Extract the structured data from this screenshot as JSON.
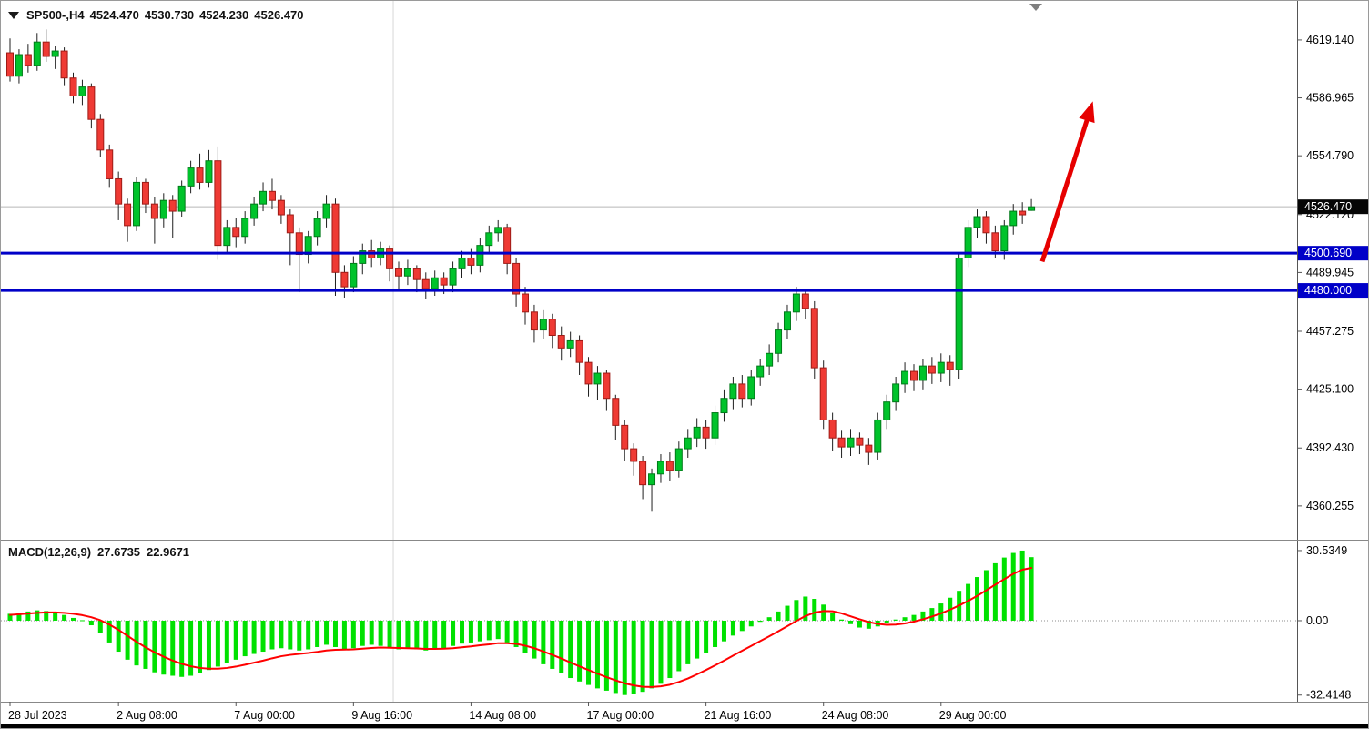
{
  "header": {
    "symbol_period": "SP500-,H4",
    "open": "4524.470",
    "high": "4530.730",
    "low": "4524.230",
    "close": "4526.470"
  },
  "macd_header": {
    "label": "MACD(12,26,9)",
    "main_value": "27.6735",
    "signal_value": "22.9671"
  },
  "price_axis": {
    "ticks": [
      {
        "label": "4619.140",
        "value": 4619.14
      },
      {
        "label": "4586.965",
        "value": 4586.965
      },
      {
        "label": "4554.790",
        "value": 4554.79
      },
      {
        "label": "4522.120",
        "value": 4522.12
      },
      {
        "label": "4489.945",
        "value": 4489.945
      },
      {
        "label": "4457.275",
        "value": 4457.275
      },
      {
        "label": "4425.100",
        "value": 4425.1
      },
      {
        "label": "4392.430",
        "value": 4392.43
      },
      {
        "label": "4360.255",
        "value": 4360.255
      }
    ],
    "markers": [
      {
        "name": "current-price-marker",
        "label": "4526.470",
        "value": 4526.47,
        "bg": "#050505",
        "fg": "#ffffff"
      },
      {
        "name": "hline-price-marker",
        "label": "4500.690",
        "value": 4500.69,
        "bg": "#0000C8",
        "fg": "#ffffff"
      },
      {
        "name": "hline-price-marker",
        "label": "4480.000",
        "value": 4480.0,
        "bg": "#0000C8",
        "fg": "#ffffff"
      }
    ]
  },
  "macd_axis": {
    "ticks": [
      {
        "label": "30.5349",
        "value": 30.5349
      },
      {
        "label": "0.00",
        "value": 0
      },
      {
        "label": "-32.4148",
        "value": -32.4148
      }
    ]
  },
  "time_axis": {
    "labels": [
      {
        "label": "28 Jul 2023",
        "bar": 0
      },
      {
        "label": "2 Aug 08:00",
        "bar": 12
      },
      {
        "label": "7 Aug 00:00",
        "bar": 25
      },
      {
        "label": "9 Aug 16:00",
        "bar": 38
      },
      {
        "label": "14 Aug 08:00",
        "bar": 51
      },
      {
        "label": "17 Aug 00:00",
        "bar": 64
      },
      {
        "label": "21 Aug 16:00",
        "bar": 77
      },
      {
        "label": "24 Aug 08:00",
        "bar": 90
      },
      {
        "label": "29 Aug 00:00",
        "bar": 103
      }
    ]
  },
  "colors": {
    "up": "#00C32B",
    "up_border": "#007A19",
    "down": "#EF3A34",
    "down_border": "#9E1B16",
    "wick": "#1f1f1f",
    "hline": "#0000C8",
    "macd_hist": "#00E100",
    "macd_signal": "#FF0000",
    "arrow": "#E60000",
    "axis_text": "#000000"
  },
  "chart_data": {
    "type": "candlestick",
    "title": "SP500-,H4",
    "symbol": "SP500-",
    "timeframe": "H4",
    "indicator": "MACD(12,26,9)",
    "current_price": 4526.47,
    "price_ylim": [
      4343.5,
      4636.8
    ],
    "macd_ylim": [
      -34.5,
      32.1
    ],
    "separators": [
      42.4
    ],
    "hlines": [
      {
        "value": 4500.69,
        "color": "#0000C8"
      },
      {
        "value": 4480.0,
        "color": "#0000C8"
      }
    ],
    "arrow": {
      "x1_bar": 114.2,
      "price1": 4496,
      "x2_bar": 119.8,
      "price2": 4585,
      "color": "#E60000"
    },
    "candles": [
      [
        4612,
        4620,
        4596,
        4599
      ],
      [
        4599,
        4614,
        4595,
        4611
      ],
      [
        4611,
        4617,
        4601,
        4605
      ],
      [
        4605,
        4623,
        4602,
        4618
      ],
      [
        4618,
        4625,
        4607,
        4610
      ],
      [
        4610,
        4616,
        4603,
        4613
      ],
      [
        4613,
        4615,
        4594,
        4598
      ],
      [
        4598,
        4601,
        4584,
        4588
      ],
      [
        4588,
        4597,
        4583,
        4593
      ],
      [
        4593,
        4595,
        4570,
        4575
      ],
      [
        4575,
        4578,
        4554,
        4558
      ],
      [
        4558,
        4561,
        4537,
        4542
      ],
      [
        4542,
        4546,
        4519,
        4528
      ],
      [
        4528,
        4531,
        4507,
        4516
      ],
      [
        4516,
        4543,
        4513,
        4540
      ],
      [
        4540,
        4542,
        4523,
        4528
      ],
      [
        4528,
        4532,
        4506,
        4520
      ],
      [
        4520,
        4534,
        4515,
        4530
      ],
      [
        4530,
        4533,
        4509,
        4524
      ],
      [
        4524,
        4541,
        4521,
        4538
      ],
      [
        4538,
        4552,
        4534,
        4548
      ],
      [
        4548,
        4556,
        4536,
        4540
      ],
      [
        4540,
        4558,
        4537,
        4552
      ],
      [
        4552,
        4560,
        4497,
        4505
      ],
      [
        4505,
        4519,
        4501,
        4515
      ],
      [
        4515,
        4520,
        4504,
        4510
      ],
      [
        4510,
        4524,
        4506,
        4520
      ],
      [
        4520,
        4532,
        4516,
        4528
      ],
      [
        4528,
        4540,
        4524,
        4535
      ],
      [
        4535,
        4542,
        4525,
        4530
      ],
      [
        4530,
        4533,
        4517,
        4522
      ],
      [
        4522,
        4525,
        4494,
        4512
      ],
      [
        4512,
        4515,
        4479,
        4500
      ],
      [
        4500,
        4513,
        4495,
        4510
      ],
      [
        4510,
        4524,
        4505,
        4520
      ],
      [
        4520,
        4533,
        4515,
        4528
      ],
      [
        4528,
        4531,
        4477,
        4490
      ],
      [
        4490,
        4494,
        4476,
        4482
      ],
      [
        4482,
        4499,
        4479,
        4495
      ],
      [
        4495,
        4506,
        4489,
        4502
      ],
      [
        4502,
        4508,
        4493,
        4498
      ],
      [
        4498,
        4507,
        4494,
        4503
      ],
      [
        4503,
        4505,
        4485,
        4492
      ],
      [
        4492,
        4496,
        4481,
        4488
      ],
      [
        4488,
        4497,
        4483,
        4492
      ],
      [
        4492,
        4494,
        4479,
        4486
      ],
      [
        4486,
        4490,
        4475,
        4481
      ],
      [
        4481,
        4491,
        4477,
        4487
      ],
      [
        4487,
        4490,
        4478,
        4483
      ],
      [
        4483,
        4496,
        4479,
        4492
      ],
      [
        4492,
        4502,
        4487,
        4498
      ],
      [
        4498,
        4503,
        4489,
        4494
      ],
      [
        4494,
        4509,
        4490,
        4505
      ],
      [
        4505,
        4516,
        4500,
        4512
      ],
      [
        4512,
        4519,
        4507,
        4515
      ],
      [
        4515,
        4517,
        4489,
        4495
      ],
      [
        4495,
        4498,
        4471,
        4478
      ],
      [
        4478,
        4482,
        4461,
        4468
      ],
      [
        4468,
        4472,
        4451,
        4458
      ],
      [
        4458,
        4469,
        4453,
        4464
      ],
      [
        4464,
        4467,
        4448,
        4455
      ],
      [
        4455,
        4460,
        4441,
        4448
      ],
      [
        4448,
        4457,
        4443,
        4452
      ],
      [
        4452,
        4455,
        4433,
        4440
      ],
      [
        4440,
        4443,
        4421,
        4428
      ],
      [
        4428,
        4438,
        4419,
        4434
      ],
      [
        4434,
        4436,
        4413,
        4420
      ],
      [
        4420,
        4422,
        4397,
        4405
      ],
      [
        4405,
        4408,
        4385,
        4392
      ],
      [
        4392,
        4395,
        4377,
        4385
      ],
      [
        4385,
        4388,
        4364,
        4372
      ],
      [
        4372,
        4381,
        4357,
        4378
      ],
      [
        4378,
        4389,
        4373,
        4385
      ],
      [
        4385,
        4390,
        4374,
        4380
      ],
      [
        4380,
        4396,
        4376,
        4392
      ],
      [
        4392,
        4403,
        4387,
        4398
      ],
      [
        4398,
        4409,
        4393,
        4404
      ],
      [
        4404,
        4408,
        4392,
        4398
      ],
      [
        4398,
        4416,
        4394,
        4412
      ],
      [
        4412,
        4425,
        4407,
        4420
      ],
      [
        4420,
        4432,
        4414,
        4428
      ],
      [
        4428,
        4433,
        4415,
        4420
      ],
      [
        4420,
        4436,
        4416,
        4432
      ],
      [
        4432,
        4442,
        4427,
        4438
      ],
      [
        4438,
        4450,
        4433,
        4445
      ],
      [
        4445,
        4462,
        4440,
        4458
      ],
      [
        4458,
        4472,
        4453,
        4468
      ],
      [
        4468,
        4482,
        4463,
        4478
      ],
      [
        4478,
        4481,
        4464,
        4470
      ],
      [
        4470,
        4474,
        4431,
        4437
      ],
      [
        4437,
        4441,
        4403,
        4408
      ],
      [
        4408,
        4412,
        4391,
        4398
      ],
      [
        4398,
        4402,
        4387,
        4393
      ],
      [
        4393,
        4403,
        4388,
        4398
      ],
      [
        4398,
        4401,
        4389,
        4394
      ],
      [
        4394,
        4398,
        4383,
        4390
      ],
      [
        4390,
        4412,
        4386,
        4408
      ],
      [
        4408,
        4422,
        4403,
        4418
      ],
      [
        4418,
        4432,
        4413,
        4428
      ],
      [
        4428,
        4440,
        4423,
        4435
      ],
      [
        4435,
        4439,
        4424,
        4430
      ],
      [
        4430,
        4442,
        4425,
        4438
      ],
      [
        4438,
        4443,
        4428,
        4434
      ],
      [
        4434,
        4445,
        4429,
        4440
      ],
      [
        4440,
        4444,
        4427,
        4436
      ],
      [
        4436,
        4501,
        4431,
        4498
      ],
      [
        4498,
        4519,
        4493,
        4515
      ],
      [
        4515,
        4525,
        4509,
        4521
      ],
      [
        4521,
        4524,
        4506,
        4512
      ],
      [
        4512,
        4516,
        4498,
        4502
      ],
      [
        4502,
        4519,
        4497,
        4516
      ],
      [
        4516,
        4528,
        4511,
        4524
      ],
      [
        4524,
        4529,
        4517,
        4522
      ],
      [
        4524.47,
        4530.73,
        4524.23,
        4526.47
      ]
    ],
    "macd_histogram": [
      3.0,
      3.5,
      4.0,
      4.5,
      4.2,
      3.5,
      2.5,
      1.2,
      0.2,
      -2.0,
      -5.5,
      -9.5,
      -13.5,
      -17.0,
      -19.5,
      -21.0,
      -22.5,
      -23.5,
      -24.0,
      -24.5,
      -24.0,
      -23.0,
      -21.5,
      -20.0,
      -18.5,
      -17.0,
      -15.5,
      -14.5,
      -13.5,
      -12.5,
      -12.0,
      -12.5,
      -13.0,
      -12.5,
      -11.5,
      -10.5,
      -11.5,
      -12.5,
      -12.0,
      -11.0,
      -10.5,
      -11.0,
      -12.0,
      -12.5,
      -12.0,
      -12.5,
      -13.0,
      -12.5,
      -12.0,
      -11.0,
      -10.0,
      -9.5,
      -9.0,
      -8.5,
      -8.0,
      -9.5,
      -11.5,
      -14.0,
      -16.5,
      -19.0,
      -21.0,
      -23.0,
      -25.0,
      -26.5,
      -28.0,
      -29.5,
      -30.5,
      -31.5,
      -32.4,
      -32.0,
      -31.0,
      -29.5,
      -27.5,
      -25.0,
      -22.0,
      -19.0,
      -16.5,
      -14.0,
      -11.5,
      -9.0,
      -6.5,
      -4.5,
      -2.5,
      -0.5,
      1.5,
      4.0,
      6.5,
      9.0,
      10.5,
      9.5,
      7.0,
      3.5,
      0.5,
      -1.5,
      -3.0,
      -3.5,
      -2.5,
      -1.0,
      0.5,
      1.5,
      2.5,
      4.0,
      5.5,
      7.5,
      10.0,
      13.0,
      16.0,
      19.0,
      22.0,
      25.0,
      27.5,
      29.5,
      30.53,
      27.67
    ],
    "macd_signal": [
      2.5,
      2.8,
      3.1,
      3.4,
      3.6,
      3.6,
      3.4,
      3.0,
      2.4,
      1.5,
      0.2,
      -1.7,
      -4.0,
      -6.6,
      -9.2,
      -11.6,
      -13.8,
      -15.7,
      -17.4,
      -18.8,
      -19.9,
      -20.6,
      -20.9,
      -20.9,
      -20.6,
      -20.0,
      -19.2,
      -18.3,
      -17.4,
      -16.4,
      -15.5,
      -14.9,
      -14.5,
      -14.1,
      -13.6,
      -13.0,
      -12.7,
      -12.6,
      -12.5,
      -12.2,
      -11.9,
      -11.7,
      -11.8,
      -11.9,
      -12.0,
      -12.1,
      -12.3,
      -12.3,
      -12.2,
      -12.0,
      -11.6,
      -11.2,
      -10.7,
      -10.3,
      -9.8,
      -9.8,
      -10.1,
      -10.9,
      -12.0,
      -13.4,
      -14.9,
      -16.5,
      -18.2,
      -19.9,
      -21.5,
      -23.1,
      -24.6,
      -26.0,
      -27.3,
      -28.2,
      -28.8,
      -28.9,
      -28.6,
      -27.9,
      -26.7,
      -25.2,
      -23.4,
      -21.5,
      -19.5,
      -17.4,
      -15.2,
      -13.1,
      -11.0,
      -8.9,
      -6.8,
      -4.6,
      -2.4,
      -0.1,
      2.0,
      3.5,
      4.2,
      4.1,
      3.2,
      1.9,
      0.6,
      -0.6,
      -1.4,
      -1.8,
      -1.7,
      -1.2,
      -0.4,
      0.6,
      1.8,
      3.2,
      4.8,
      6.6,
      8.6,
      10.8,
      13.2,
      15.7,
      18.1,
      20.4,
      22.2,
      22.97
    ]
  }
}
